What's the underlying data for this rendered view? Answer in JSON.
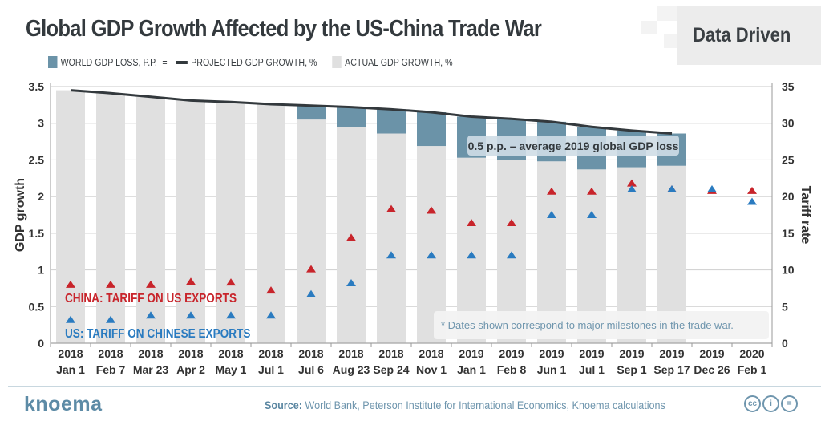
{
  "header": {
    "title": "Global GDP Growth Affected by the US-China Trade War",
    "badge": "Data Driven"
  },
  "legend": [
    {
      "label": "WORLD GDP LOSS, P.P.",
      "color": "#6b93a8"
    },
    {
      "label": "PROJECTED GDP GROWTH, %",
      "color": "#33393d"
    },
    {
      "label": "ACTUAL GDP GROWTH, %",
      "color": "#e0e0e0"
    }
  ],
  "chart_data": {
    "type": "bar",
    "title": "Global GDP Growth Affected by the US-China Trade War",
    "ylabel": "GDP growth",
    "y2label": "Tariff rate",
    "ylim": [
      0,
      3.5
    ],
    "y2lim": [
      0,
      35
    ],
    "yticks": [
      "0",
      "0.5",
      "1",
      "1.5",
      "2",
      "2.5",
      "3",
      "3.5"
    ],
    "y2ticks": [
      "0",
      "5",
      "10",
      "15",
      "20",
      "25",
      "30",
      "35"
    ],
    "grid": true,
    "categories": [
      [
        "2018",
        "Jan 1"
      ],
      [
        "2018",
        "Feb 7"
      ],
      [
        "2018",
        "Mar 23"
      ],
      [
        "2018",
        "Apr 2"
      ],
      [
        "2018",
        "May 1"
      ],
      [
        "2018",
        "Jul 1"
      ],
      [
        "2018",
        "Jul 6"
      ],
      [
        "2018",
        "Aug 23"
      ],
      [
        "2018",
        "Sep 24"
      ],
      [
        "2018",
        "Nov 1"
      ],
      [
        "2019",
        "Jan 1"
      ],
      [
        "2019",
        "Feb 8"
      ],
      [
        "2019",
        "Jun 1"
      ],
      [
        "2019",
        "Jul 1"
      ],
      [
        "2019",
        "Sep 1"
      ],
      [
        "2019",
        "Sep 17"
      ],
      [
        "2019",
        "Dec 26"
      ],
      [
        "2020",
        "Feb 1"
      ]
    ],
    "series": [
      {
        "name": "PROJECTED GDP GROWTH, %",
        "type": "line",
        "color": "#33393d",
        "values": [
          3.45,
          3.41,
          3.36,
          3.31,
          3.29,
          3.26,
          3.24,
          3.22,
          3.19,
          3.15,
          3.09,
          3.06,
          3.02,
          2.95,
          2.9,
          2.86,
          null,
          null
        ]
      },
      {
        "name": "ACTUAL GDP GROWTH, %",
        "type": "bar",
        "color": "#e0e0e0",
        "values": [
          3.45,
          3.41,
          3.36,
          3.31,
          3.29,
          3.26,
          3.05,
          2.95,
          2.86,
          2.69,
          2.53,
          2.5,
          2.48,
          2.37,
          2.4,
          2.42,
          null,
          null
        ]
      },
      {
        "name": "WORLD GDP LOSS, P.P.",
        "type": "bar-stack",
        "color": "#6b93a8",
        "values": [
          0,
          0,
          0,
          0,
          0,
          0,
          0.19,
          0.27,
          0.33,
          0.46,
          0.56,
          0.56,
          0.54,
          0.58,
          0.5,
          0.44,
          null,
          null
        ]
      },
      {
        "name": "CHINA: TARIFF ON US EXPORTS",
        "type": "marker",
        "axis": "right",
        "color": "#c8242b",
        "values": [
          8.0,
          8.0,
          8.0,
          8.4,
          8.3,
          7.2,
          10.1,
          14.4,
          18.3,
          18.1,
          16.4,
          16.4,
          20.7,
          20.7,
          21.8,
          21.0,
          20.8,
          20.8
        ]
      },
      {
        "name": "US: TARIFF ON CHINESE EXPORTS",
        "type": "marker",
        "axis": "right",
        "color": "#2a7bc0",
        "values": [
          3.2,
          3.2,
          3.8,
          3.8,
          3.8,
          3.8,
          6.7,
          8.2,
          12.0,
          12.0,
          12.0,
          12.0,
          17.5,
          17.5,
          21.0,
          21.0,
          21.0,
          19.3
        ]
      }
    ],
    "annotations": [
      "0.5 p.p. – average 2019 global GDP loss",
      "* Dates shown correspond to major milestones in the trade war."
    ]
  },
  "footer": {
    "logo": "knoema",
    "source_label": "Source:",
    "source_text": "World Bank, Peterson Institute for International Economics, Knoema calculations",
    "license_icons": [
      "cc-icon",
      "by-icon",
      "nd-icon"
    ]
  }
}
